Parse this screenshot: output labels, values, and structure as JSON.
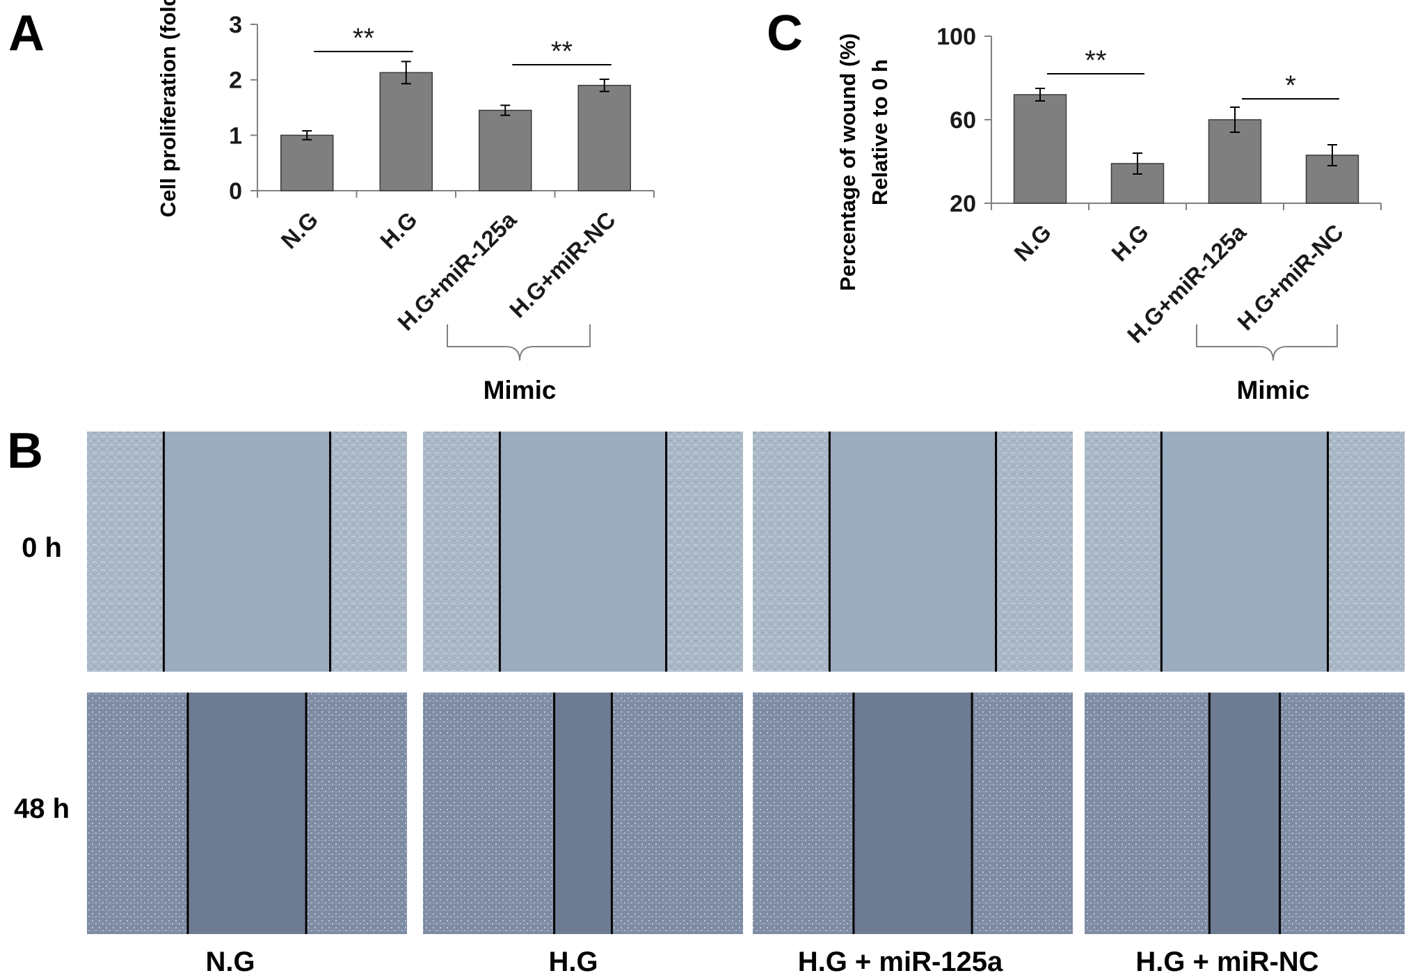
{
  "panels": {
    "A": {
      "letter": "A",
      "ylabel": "Cell proliferation (fold)",
      "mimic_label": "Mimic",
      "significance": [
        {
          "from": 0,
          "to": 1,
          "text": "**"
        },
        {
          "from": 2,
          "to": 3,
          "text": "**"
        }
      ]
    },
    "B": {
      "letter": "B",
      "row_labels": [
        "0 h",
        "48 h"
      ],
      "column_labels": [
        "N.G",
        "H.G",
        "H.G + miR-125a",
        "H.G + miR-NC"
      ],
      "gap_fraction_0h": [
        0.52,
        0.52,
        0.52,
        0.52
      ],
      "gap_fraction_48h": [
        0.37,
        0.18,
        0.37,
        0.22
      ]
    },
    "C": {
      "letter": "C",
      "ylabel_line1": "Percentage of wound (%)",
      "ylabel_line2": "Relative to 0 h",
      "mimic_label": "Mimic",
      "significance": [
        {
          "from": 0,
          "to": 1,
          "text": "**"
        },
        {
          "from": 2,
          "to": 3,
          "text": "*"
        }
      ]
    }
  },
  "colors": {
    "bar": "#7f7f7f",
    "bar_stroke": "#3a3a3a",
    "axis": "#808080",
    "text": "#1a1a1a",
    "cells_0h": "#a9b7c6",
    "gap_0h": "#9cacbf",
    "cells_48h": "#7d8ba3",
    "gap_48h": "#6d7b93"
  },
  "chart_data": [
    {
      "type": "bar",
      "panel": "A",
      "categories": [
        "N.G",
        "H.G",
        "H.G+miR-125a",
        "H.G+miR-NC"
      ],
      "values": [
        1.0,
        2.13,
        1.45,
        1.9
      ],
      "errors": [
        0.08,
        0.2,
        0.09,
        0.11
      ],
      "ylabel": "Cell proliferation (fold)",
      "ylim": [
        0,
        3
      ],
      "yticks": [
        0,
        1,
        2,
        3
      ],
      "grid": false
    },
    {
      "type": "bar",
      "panel": "C",
      "categories": [
        "N.G",
        "H.G",
        "H.G+miR-125a",
        "H.G+miR-NC"
      ],
      "values": [
        72,
        39,
        60,
        43
      ],
      "errors": [
        3,
        5,
        6,
        5
      ],
      "ylabel": "Percentage of wound (%) Relative to 0 h",
      "ylim": [
        20,
        100
      ],
      "yticks": [
        20,
        60,
        100
      ],
      "grid": false
    }
  ]
}
